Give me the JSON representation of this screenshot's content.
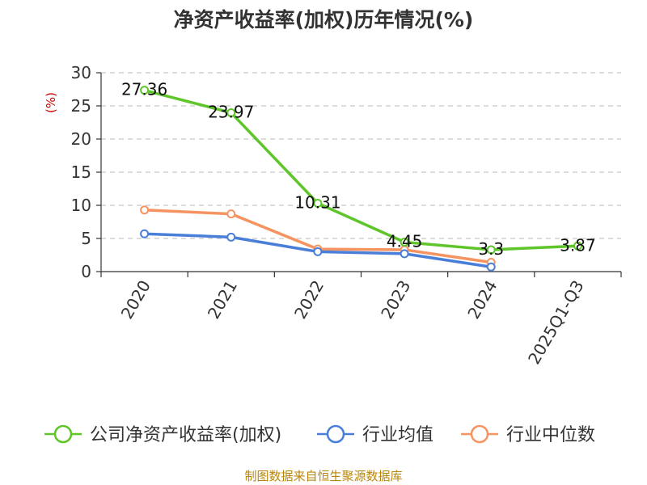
{
  "chart_data": {
    "type": "line",
    "title": "净资产收益率(加权)历年情况(%)",
    "ylabel": "(%)",
    "xlabel": "",
    "categories": [
      "2020",
      "2021",
      "2022",
      "2023",
      "2024",
      "2025Q1-Q3"
    ],
    "ylim": [
      0,
      30
    ],
    "yticks": [
      0,
      5,
      10,
      15,
      20,
      25,
      30
    ],
    "grid": true,
    "legend_position": "bottom",
    "series": [
      {
        "name": "公司净资产收益率(加权)",
        "color": "#5ec52a",
        "values": [
          27.36,
          23.97,
          10.31,
          4.45,
          3.3,
          3.87
        ],
        "labels": [
          "27.36",
          "23.97",
          "10.31",
          "4.45",
          "3.3",
          "3.87"
        ]
      },
      {
        "name": "行业均值",
        "color": "#4a7fd9",
        "values": [
          5.7,
          5.2,
          3.0,
          2.7,
          0.7,
          null
        ]
      },
      {
        "name": "行业中位数",
        "color": "#f59461",
        "values": [
          9.3,
          8.7,
          3.4,
          3.3,
          1.4,
          null
        ]
      }
    ],
    "source": "制图数据来自恒生聚源数据库"
  }
}
